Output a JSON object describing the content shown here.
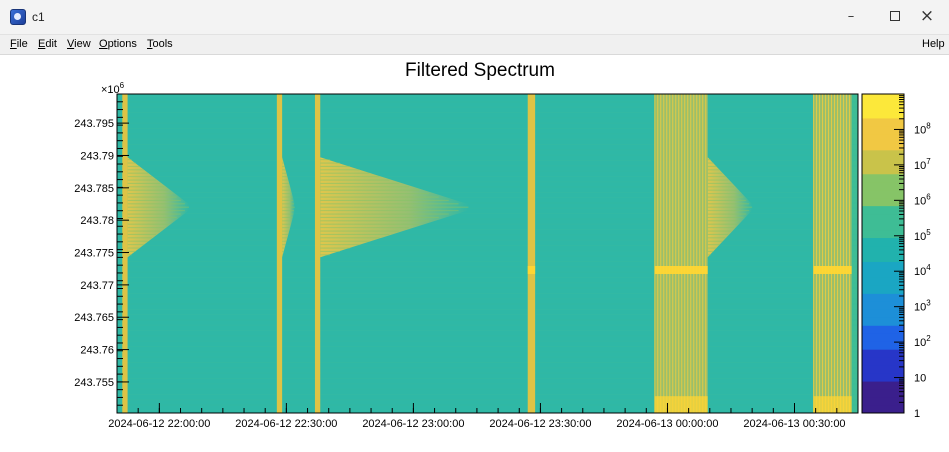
{
  "window": {
    "title": "c1",
    "icon": "root-app-icon"
  },
  "window_controls": {
    "minimize": "–",
    "close": "×"
  },
  "menu": {
    "items": [
      {
        "key": "F",
        "rest": "ile"
      },
      {
        "key": "E",
        "rest": "dit"
      },
      {
        "key": "V",
        "rest": "iew"
      },
      {
        "key": "O",
        "rest": "ptions"
      },
      {
        "key": "T",
        "rest": "ools"
      }
    ],
    "help": {
      "key": "",
      "rest": "Help"
    }
  },
  "colors": {
    "background": "#2fb8a6",
    "band": "#f2c43b",
    "band_bright": "#ffd633",
    "palette": [
      "#3a1f8c",
      "#2736c8",
      "#1f63e6",
      "#1d8fd8",
      "#1aa6c3",
      "#21b2ad",
      "#3ebd95",
      "#86c467",
      "#c9c34a",
      "#f1c843",
      "#fce83a"
    ]
  },
  "chart_data": {
    "type": "heatmap",
    "title": "Filtered Spectrum",
    "xlabel": "",
    "ylabel": "",
    "x_is_time": true,
    "xlim": [
      "2024-06-12 21:50:00",
      "2024-06-13 00:45:00"
    ],
    "ylim": [
      243.7502,
      243.7995
    ],
    "y_exponent_label": "×10",
    "y_exponent_value": "6",
    "x_tick_labels": [
      "2024-06-12 22:00:00",
      "2024-06-12 22:30:00",
      "2024-06-12 23:00:00",
      "2024-06-12 23:30:00",
      "2024-06-13 00:00:00",
      "2024-06-13 00:30:00"
    ],
    "y_tick_labels": [
      "243.755",
      "243.76",
      "243.765",
      "243.77",
      "243.775",
      "243.78",
      "243.785",
      "243.79",
      "243.795"
    ],
    "y_tick_values": [
      243.755,
      243.76,
      243.765,
      243.77,
      243.775,
      243.78,
      243.785,
      243.79,
      243.795
    ],
    "z_scale": "log",
    "z_range": [
      1,
      1000000000
    ],
    "z_tick_labels": [
      {
        "base": "1",
        "exp": ""
      },
      {
        "base": "10",
        "exp": ""
      },
      {
        "base": "10",
        "exp": "2"
      },
      {
        "base": "10",
        "exp": "3"
      },
      {
        "base": "10",
        "exp": "4"
      },
      {
        "base": "10",
        "exp": "5"
      },
      {
        "base": "10",
        "exp": "6"
      },
      {
        "base": "10",
        "exp": "7"
      },
      {
        "base": "10",
        "exp": "8"
      }
    ],
    "z_tick_values": [
      1,
      10,
      100,
      1000,
      10000,
      100000,
      1000000,
      10000000,
      100000000
    ],
    "background_level": 10000,
    "strong_intervals": [
      {
        "start": "2024-06-12 21:51:15",
        "end": "2024-06-12 21:52:30",
        "level": 10000000
      },
      {
        "start": "2024-06-12 22:27:45",
        "end": "2024-06-12 22:29:00",
        "level": 10000000
      },
      {
        "start": "2024-06-12 22:36:45",
        "end": "2024-06-12 22:38:00",
        "level": 10000000
      },
      {
        "start": "2024-06-12 23:27:00",
        "end": "2024-06-12 23:28:45",
        "level": 10000000
      },
      {
        "start": "2024-06-12 23:57:00",
        "end": "2024-06-13 00:09:30",
        "level": 1000000
      },
      {
        "start": "2024-06-13 00:34:30",
        "end": "2024-06-13 00:43:30",
        "level": 1000000
      }
    ],
    "ridges": [
      {
        "time": "2024-06-13 00:00:00",
        "frequency": 243.7723,
        "level": 10000000
      },
      {
        "time": "2024-06-13 00:39:00",
        "frequency": 243.7723,
        "level": 10000000
      },
      {
        "time": "2024-06-12 23:28:00",
        "frequency": 243.7723,
        "level": 10000000
      }
    ],
    "plumes": [
      {
        "start": "2024-06-12 21:52:30",
        "end": "2024-06-12 22:07:00",
        "frequency": 243.782,
        "level": 1000000
      },
      {
        "start": "2024-06-12 22:29:00",
        "end": "2024-06-12 22:32:00",
        "frequency": 243.782,
        "level": 1000000
      },
      {
        "start": "2024-06-12 22:38:00",
        "end": "2024-06-12 23:13:00",
        "frequency": 243.782,
        "level": 1000000
      },
      {
        "start": "2024-06-13 00:09:30",
        "end": "2024-06-13 00:20:00",
        "frequency": 243.782,
        "level": 1000000
      }
    ],
    "right_edge_column": {
      "start": "2024-06-13 00:43:30",
      "end": "2024-06-13 00:45:00",
      "level": 100000
    }
  }
}
